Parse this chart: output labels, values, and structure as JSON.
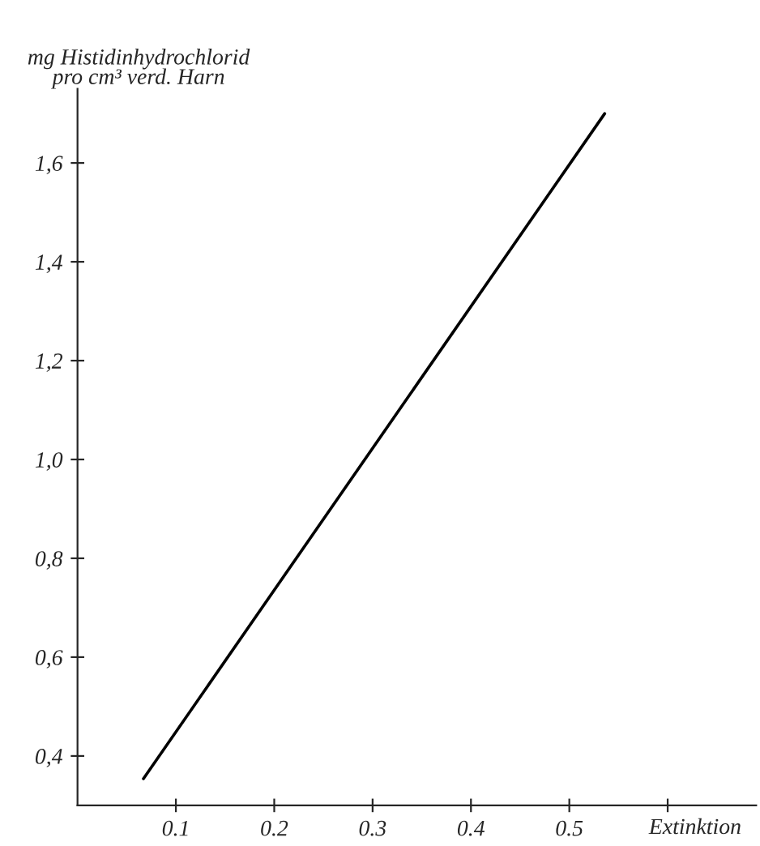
{
  "chart_data": {
    "type": "line",
    "xlabel": "Extinktion",
    "ylabel": "mg Histidinhydrochlorid\npro cm³ verd. Harn",
    "x": [
      0.067,
      0.536
    ],
    "series": [
      {
        "color": "#000000",
        "values": [
          0.354,
          1.7
        ]
      }
    ],
    "xlim": [
      0,
      0.69
    ],
    "ylim": [
      0.3,
      1.75
    ],
    "xticks": [
      0.1,
      0.2,
      0.3,
      0.4,
      0.5,
      {
        "value": 0.6,
        "label": null
      }
    ],
    "yticks": [
      {
        "value": 0.4,
        "label": "0,4"
      },
      {
        "value": 0.6,
        "label": "0,6"
      },
      {
        "value": 0.8,
        "label": "0,8"
      },
      {
        "value": 1.0,
        "label": "1,0"
      },
      {
        "value": 1.2,
        "label": "1,2"
      },
      {
        "value": 1.4,
        "label": "1,4"
      },
      {
        "value": 1.6,
        "label": "1,6"
      }
    ],
    "grid": false,
    "legend": false,
    "marker": "none",
    "line_style": "solid"
  }
}
